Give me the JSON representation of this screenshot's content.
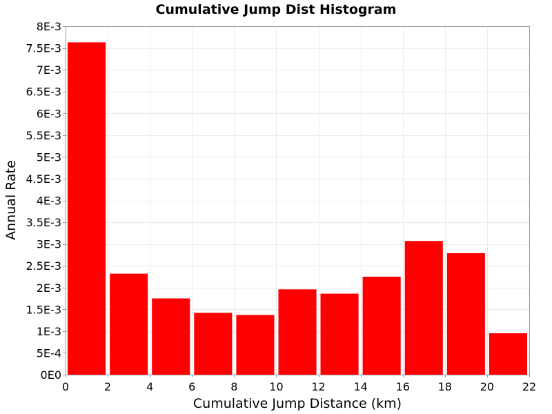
{
  "chart_data": {
    "type": "bar",
    "title": "Cumulative Jump Dist Histogram",
    "xlabel": "Cumulative Jump Distance (km)",
    "ylabel": "Annual Rate",
    "xlim": [
      0,
      22
    ],
    "ylim": [
      0,
      0.008
    ],
    "bin_width": 2,
    "x": [
      1,
      3,
      5,
      7,
      9,
      11,
      13,
      15,
      17,
      19,
      21
    ],
    "values": [
      0.00763,
      0.00232,
      0.00175,
      0.00142,
      0.00137,
      0.00196,
      0.00186,
      0.00225,
      0.00307,
      0.00279,
      0.00095
    ],
    "bar_color": "#ff0000",
    "grid": true,
    "xticks": [
      {
        "v": 0,
        "label": "0"
      },
      {
        "v": 2,
        "label": "2"
      },
      {
        "v": 4,
        "label": "4"
      },
      {
        "v": 6,
        "label": "6"
      },
      {
        "v": 8,
        "label": "8"
      },
      {
        "v": 10,
        "label": "10"
      },
      {
        "v": 12,
        "label": "12"
      },
      {
        "v": 14,
        "label": "14"
      },
      {
        "v": 16,
        "label": "16"
      },
      {
        "v": 18,
        "label": "18"
      },
      {
        "v": 20,
        "label": "20"
      },
      {
        "v": 22,
        "label": "22"
      }
    ],
    "yticks": [
      {
        "v": 0,
        "label": "0E0"
      },
      {
        "v": 0.0005,
        "label": "5E-4"
      },
      {
        "v": 0.001,
        "label": "1E-3"
      },
      {
        "v": 0.0015,
        "label": "1.5E-3"
      },
      {
        "v": 0.002,
        "label": "2E-3"
      },
      {
        "v": 0.0025,
        "label": "2.5E-3"
      },
      {
        "v": 0.003,
        "label": "3E-3"
      },
      {
        "v": 0.0035,
        "label": "3.5E-3"
      },
      {
        "v": 0.004,
        "label": "4E-3"
      },
      {
        "v": 0.0045,
        "label": "4.5E-3"
      },
      {
        "v": 0.005,
        "label": "5E-3"
      },
      {
        "v": 0.0055,
        "label": "5.5E-3"
      },
      {
        "v": 0.006,
        "label": "6E-3"
      },
      {
        "v": 0.0065,
        "label": "6.5E-3"
      },
      {
        "v": 0.007,
        "label": "7E-3"
      },
      {
        "v": 0.0075,
        "label": "7.5E-3"
      },
      {
        "v": 0.008,
        "label": "8E-3"
      }
    ]
  }
}
